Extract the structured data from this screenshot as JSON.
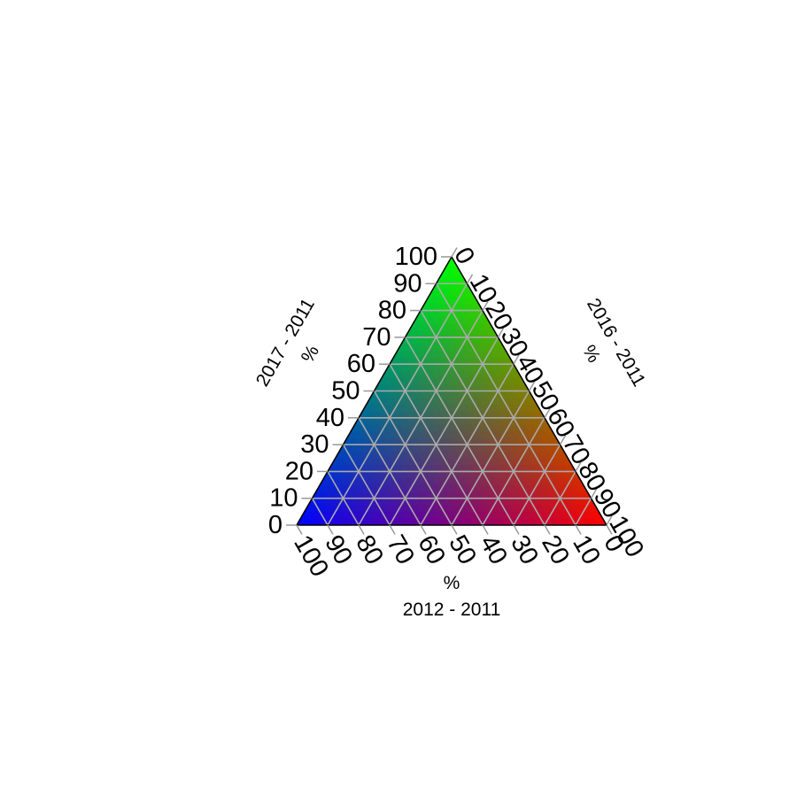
{
  "chart_data": {
    "type": "ternary",
    "axes": {
      "left": {
        "label": "2017 - 2011",
        "unit": "%",
        "color": "#00ff00",
        "ticks": [
          "0",
          "10",
          "20",
          "30",
          "40",
          "50",
          "60",
          "70",
          "80",
          "90",
          "100"
        ]
      },
      "right": {
        "label": "2016 - 2011",
        "unit": "%",
        "color": "#ff0000",
        "ticks": [
          "0",
          "10",
          "20",
          "30",
          "40",
          "50",
          "60",
          "70",
          "80",
          "90",
          "100"
        ]
      },
      "bottom": {
        "label": "2012 - 2011",
        "unit": "%",
        "color": "#0000ff",
        "ticks": [
          "0",
          "10",
          "20",
          "30",
          "40",
          "50",
          "60",
          "70",
          "80",
          "90",
          "100"
        ]
      }
    },
    "range": [
      0,
      100
    ],
    "grid_step": 10,
    "grid": true,
    "grid_color": "#aaaaaa",
    "vertex_colors": {
      "top": "#00ff00",
      "right": "#ff0000",
      "left": "#0000ff"
    },
    "background": "rgb color-mixture fill"
  }
}
